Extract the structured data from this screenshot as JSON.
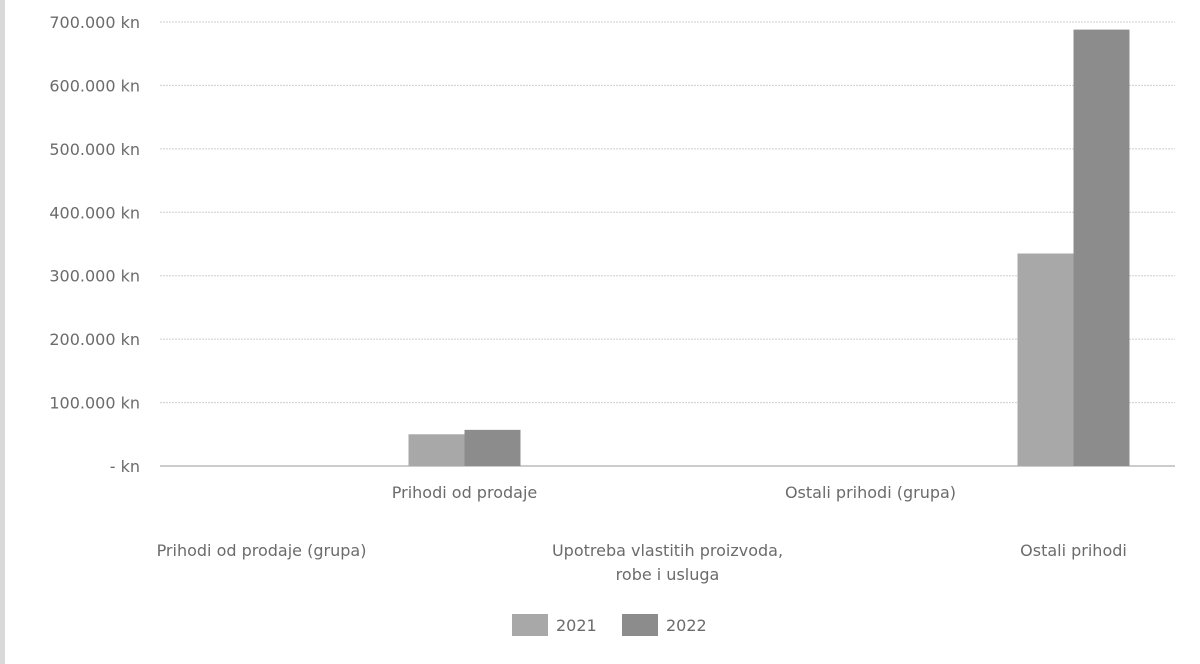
{
  "chart_data": {
    "type": "bar",
    "categories": [
      "Prihodi od prodaje (grupa)",
      "Prihodi od prodaje",
      "Upotreba vlastitih proizvoda, robe i usluga",
      "Ostali prihodi (grupa)",
      "Ostali prihodi"
    ],
    "category_label_lines": [
      [
        "Prihodi od prodaje (grupa)"
      ],
      [
        "Prihodi od prodaje"
      ],
      [
        "Upotreba vlastitih proizvoda,",
        "robe i usluga"
      ],
      [
        "Ostali prihodi (grupa)"
      ],
      [
        "Ostali prihodi"
      ]
    ],
    "series": [
      {
        "name": "2021",
        "values": [
          0,
          50000,
          0,
          0,
          335000
        ],
        "color": "#a8a8a8"
      },
      {
        "name": "2022",
        "values": [
          0,
          57000,
          0,
          0,
          688000
        ],
        "color": "#8c8c8c"
      }
    ],
    "ylim": [
      0,
      700000
    ],
    "yticks": [
      0,
      100000,
      200000,
      300000,
      400000,
      500000,
      600000,
      700000
    ],
    "ytick_labels": [
      "- kn",
      "100.000 kn",
      "200.000 kn",
      "300.000 kn",
      "400.000 kn",
      "500.000 kn",
      "600.000 kn",
      "700.000 kn"
    ],
    "grid": true,
    "legend_position": "bottom"
  }
}
